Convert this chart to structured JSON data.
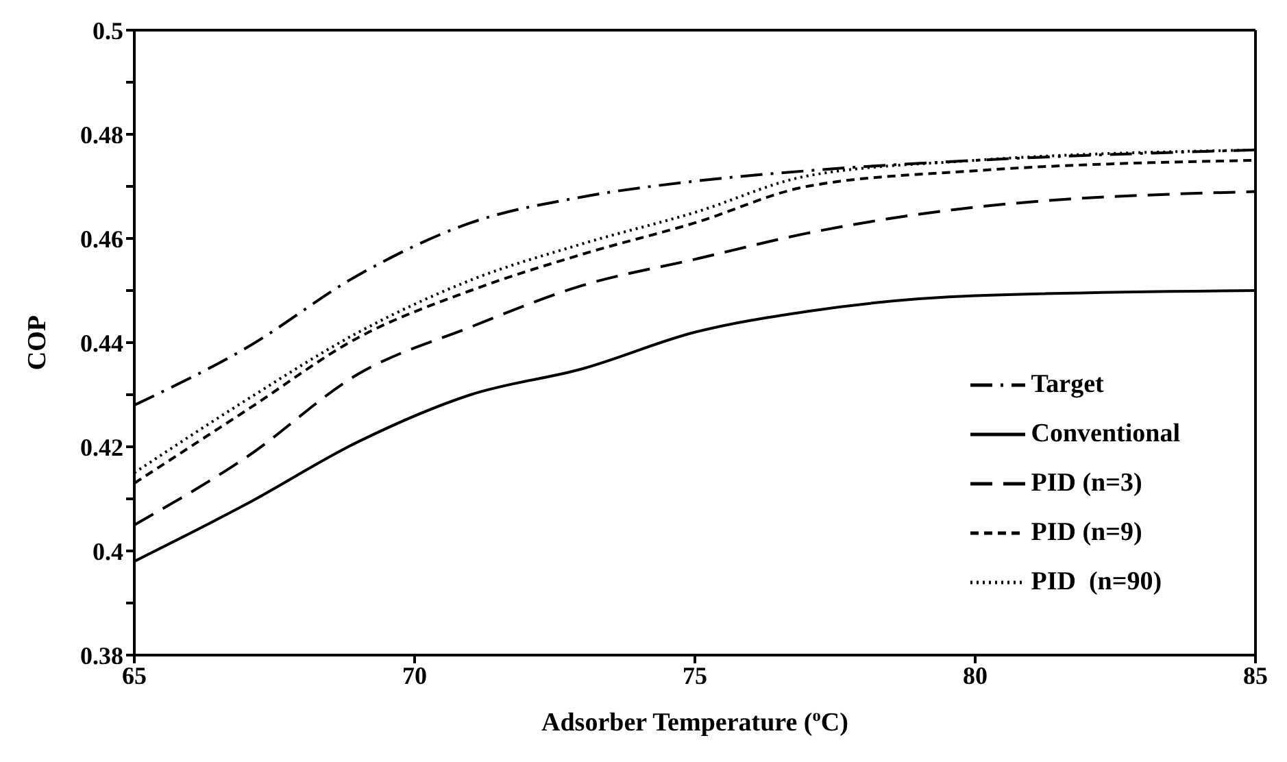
{
  "chart_data": {
    "type": "line",
    "xlabel": "Adsorber Temperature ($^{o}$C)",
    "ylabel": "COP",
    "x": [
      65,
      67,
      69,
      71,
      73,
      75,
      77,
      80,
      85
    ],
    "series": [
      {
        "name": "Target",
        "color": "#000000",
        "line_style": "dashdot",
        "values": [
          0.428,
          0.439,
          0.453,
          0.463,
          0.468,
          0.471,
          0.473,
          0.475,
          0.477
        ]
      },
      {
        "name": "Conventional",
        "color": "#000000",
        "line_style": "solid",
        "values": [
          0.398,
          0.409,
          0.421,
          0.43,
          0.435,
          0.442,
          0.446,
          0.449,
          0.45
        ]
      },
      {
        "name": "PID (n=3)",
        "color": "#000000",
        "line_style": "longdash",
        "values": [
          0.405,
          0.418,
          0.434,
          0.443,
          0.451,
          0.456,
          0.461,
          0.466,
          0.469
        ]
      },
      {
        "name": "PID (n=9)",
        "color": "#000000",
        "line_style": "dashed",
        "values": [
          0.413,
          0.427,
          0.441,
          0.45,
          0.457,
          0.463,
          0.47,
          0.473,
          0.475
        ]
      },
      {
        "name": "PID  (n=90)",
        "color": "#000000",
        "line_style": "dotted",
        "values": [
          0.415,
          0.429,
          0.442,
          0.452,
          0.459,
          0.465,
          0.472,
          0.475,
          0.477
        ]
      }
    ],
    "xlim": [
      65,
      85
    ],
    "xticks": [
      65,
      70,
      75,
      80,
      85
    ],
    "ylim": [
      0.38,
      0.5
    ],
    "yticks": [
      0.38,
      {
        "value": 0.39,
        "label": null
      },
      0.4,
      {
        "value": 0.41,
        "label": null
      },
      0.42,
      {
        "value": 0.43,
        "label": null
      },
      0.44,
      {
        "value": 0.45,
        "label": null
      },
      0.46,
      {
        "value": 0.47,
        "label": null
      },
      0.48,
      {
        "value": 0.49,
        "label": null
      },
      0.5
    ],
    "grid": false,
    "legend": "bottom right",
    "marker": "none"
  }
}
